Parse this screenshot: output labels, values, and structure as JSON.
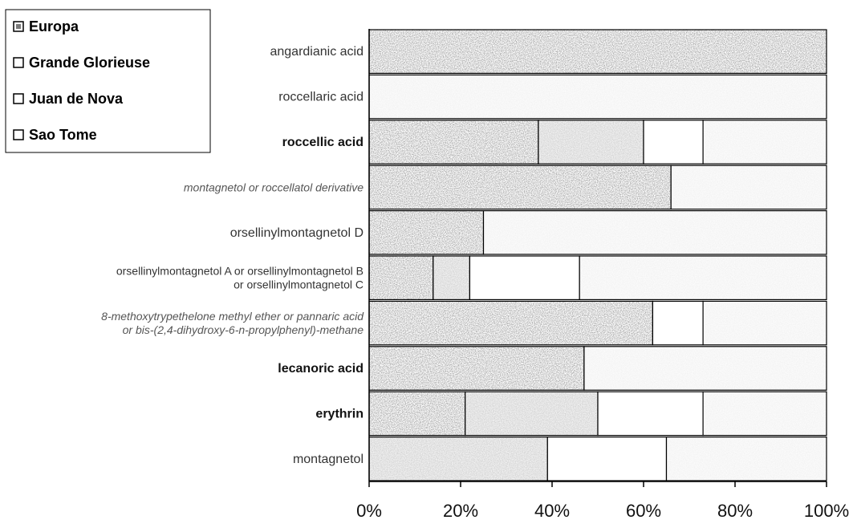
{
  "chart_data": {
    "type": "bar",
    "orientation": "horizontal",
    "stacked": "percent",
    "title": "",
    "xlabel": "",
    "ylabel": "",
    "xlim": [
      0,
      100
    ],
    "x_ticks": [
      "0%",
      "20%",
      "40%",
      "60%",
      "80%",
      "100%"
    ],
    "legend_position": "top-left",
    "categories": [
      {
        "lines": [
          "angardianic acid"
        ],
        "style": "normal"
      },
      {
        "lines": [
          "roccellaric acid"
        ],
        "style": "normal"
      },
      {
        "lines": [
          "roccellic acid"
        ],
        "style": "bold"
      },
      {
        "lines": [
          "montagnetol or roccellatol derivative"
        ],
        "style": "italic"
      },
      {
        "lines": [
          "orsellinylmontagnetol D"
        ],
        "style": "normal"
      },
      {
        "lines": [
          "orsellinylmontagnetol A or orsellinylmontagnetol B",
          "or orsellinylmontagnetol C"
        ],
        "style": "small"
      },
      {
        "lines": [
          "8-methoxytrypethelone methyl ether or pannaric acid",
          "or bis-(2,4-dihydroxy-6-n-propylphenyl)-methane"
        ],
        "style": "italic"
      },
      {
        "lines": [
          "lecanoric acid"
        ],
        "style": "bold"
      },
      {
        "lines": [
          "erythrin"
        ],
        "style": "bold"
      },
      {
        "lines": [
          "montagnetol"
        ],
        "style": "normal"
      }
    ],
    "series": [
      {
        "name": "Europa",
        "color": "#7a7a7a",
        "values": [
          100,
          0,
          37,
          66,
          25,
          14,
          62,
          47,
          21,
          0
        ]
      },
      {
        "name": "Grande Glorieuse",
        "color": "#c8c8c8",
        "values": [
          0,
          0,
          23,
          0,
          0,
          8,
          0,
          0,
          29,
          39
        ]
      },
      {
        "name": "Juan de Nova",
        "color": "#ffffff",
        "values": [
          0,
          0,
          13,
          0,
          0,
          24,
          11,
          0,
          23,
          26
        ]
      },
      {
        "name": "Sao Tome",
        "color": "#efefef",
        "values": [
          0,
          100,
          27,
          34,
          75,
          54,
          27,
          53,
          27,
          35
        ]
      }
    ]
  }
}
